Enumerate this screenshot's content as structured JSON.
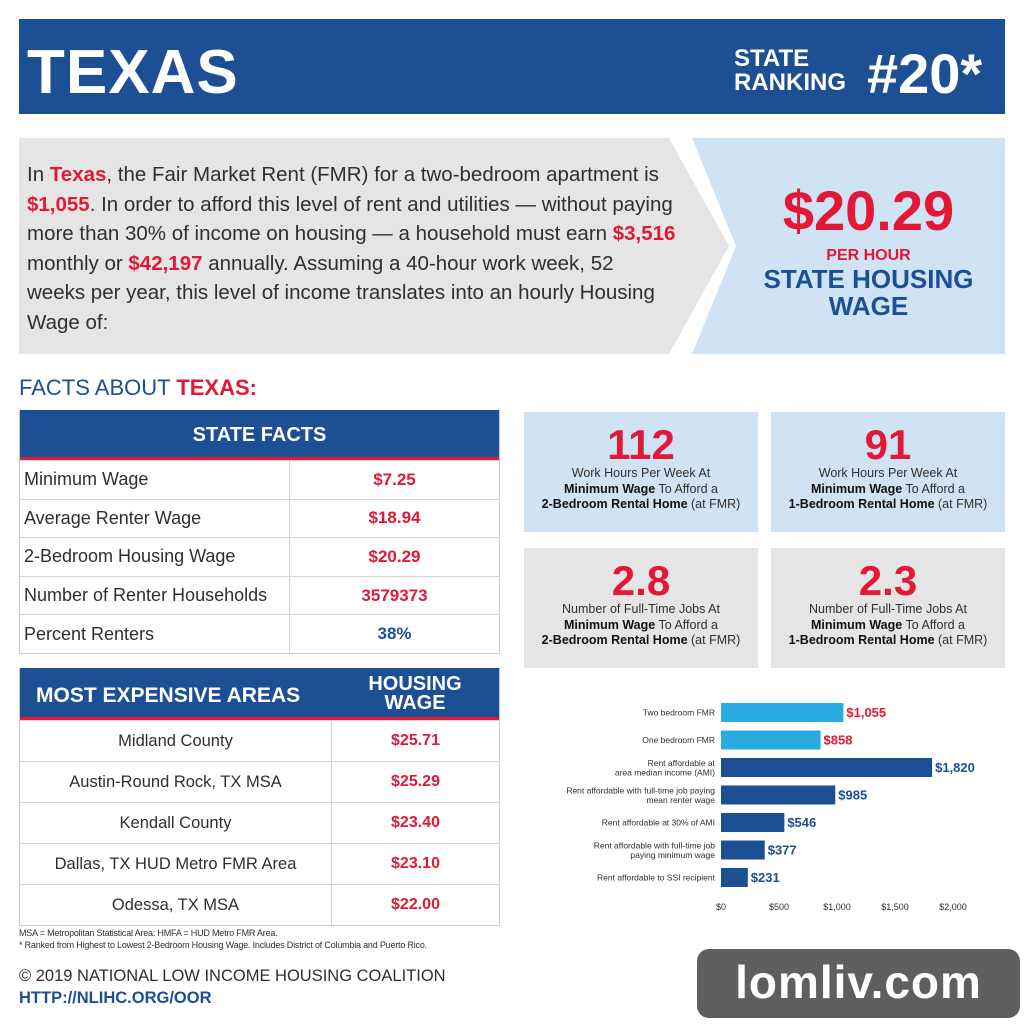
{
  "header": {
    "state": "TEXAS",
    "ranking_label_1": "STATE",
    "ranking_label_2": "RANKING",
    "ranking": "#20*"
  },
  "intro": {
    "p1": "In ",
    "state": "Texas",
    "p2": ", the Fair Market Rent (FMR) for a two-bedroom apartment is ",
    "fmr": "$1,055",
    "p3": ". In order to afford this level of rent and utilities — without paying more than 30% of income on housing — a household must earn ",
    "monthly": "$3,516",
    "p4": " monthly or ",
    "annual": "$42,197",
    "p5": " annually. Assuming a 40-hour work week, 52 weeks per year, this level of income translates into an hourly Housing Wage of:"
  },
  "wage_box": {
    "amount": "$20.29",
    "per_hour": "PER HOUR",
    "line1": "STATE HOUSING",
    "line2": "WAGE"
  },
  "facts_title": {
    "prefix": "FACTS ABOUT ",
    "state": "TEXAS:"
  },
  "state_facts": {
    "title": "STATE FACTS",
    "rows": [
      {
        "label": "Minimum Wage",
        "value": "$7.25"
      },
      {
        "label": "Average Renter Wage",
        "value": "$18.94"
      },
      {
        "label": "2-Bedroom Housing Wage",
        "value": "$20.29"
      },
      {
        "label": "Number of Renter Households",
        "value": "3579373"
      },
      {
        "label": "Percent Renters",
        "value": "38%"
      }
    ]
  },
  "expensive": {
    "title": "MOST EXPENSIVE AREAS",
    "col2_1": "HOUSING",
    "col2_2": "WAGE",
    "rows": [
      {
        "area": "Midland County",
        "wage": "$25.71"
      },
      {
        "area": "Austin-Round Rock, TX MSA",
        "wage": "$25.29"
      },
      {
        "area": "Kendall County",
        "wage": "$23.40"
      },
      {
        "area": "Dallas, TX HUD Metro FMR Area",
        "wage": "$23.10"
      },
      {
        "area": "Odessa, TX MSA",
        "wage": "$22.00"
      }
    ]
  },
  "footnotes": {
    "line1": "MSA = Metropolitan Statistical Area: HMFA = HUD Metro FMR Area.",
    "line2": "* Ranked from Highest to Lowest 2-Bedroom Housing Wage. Includes District of Columbia and Puerto Rico."
  },
  "footer": {
    "copyright": "© 2019 NATIONAL LOW INCOME HOUSING COALITION",
    "url": "HTTP://NLIHC.ORG/OOR"
  },
  "stats": [
    {
      "num": "112",
      "l1": "Work Hours Per Week At",
      "l2b": "Minimum Wage",
      "l2": " To Afford a",
      "l3b": "2-Bedroom Rental Home",
      "l3": " (at FMR)"
    },
    {
      "num": "91",
      "l1": "Work Hours Per Week At",
      "l2b": "Minimum Wage",
      "l2": " To Afford a",
      "l3b": "1-Bedroom Rental Home",
      "l3": " (at FMR)"
    },
    {
      "num": "2.8",
      "l1": "Number of Full-Time Jobs At",
      "l2b": "Minimum Wage",
      "l2": " To Afford a",
      "l3b": "2-Bedroom Rental Home",
      "l3": " (at FMR)"
    },
    {
      "num": "2.3",
      "l1": "Number of Full-Time Jobs At",
      "l2b": "Minimum Wage",
      "l2": " To Afford a",
      "l3b": "1-Bedroom Rental Home",
      "l3": " (at FMR)"
    }
  ],
  "chart_data": {
    "type": "bar",
    "orientation": "horizontal",
    "categories": [
      [
        "Two bedroom FMR"
      ],
      [
        "One bedroom FMR"
      ],
      [
        "Rent affordable at",
        "area median income (AMI)"
      ],
      [
        "Rent affordable with full-time job paying",
        "mean renter wage"
      ],
      [
        "Rent affordable at 30% of AMI"
      ],
      [
        "Rent affordable with full-time job",
        "paying minimum wage"
      ],
      [
        "Rent affordable to SSI recipient"
      ]
    ],
    "values": [
      1055,
      858,
      1820,
      985,
      546,
      377,
      231
    ],
    "value_labels": [
      "$1,055",
      "$858",
      "$1,820",
      "$985",
      "$546",
      "$377",
      "$231"
    ],
    "bar_colors": [
      "#29abe2",
      "#29abe2",
      "#1c4f93",
      "#1c4f93",
      "#1c4f93",
      "#1c4f93",
      "#1c4f93"
    ],
    "label_colors": [
      "#e31837",
      "#e31837",
      "#1c4f93",
      "#1c4f93",
      "#1c4f93",
      "#1c4f93",
      "#1c4f93"
    ],
    "xlim": [
      0,
      2000
    ],
    "xticks": [
      0,
      500,
      1000,
      1500,
      2000
    ],
    "xtick_labels": [
      "$0",
      "$500",
      "$1,000",
      "$1,500",
      "$2,000"
    ],
    "grid": false
  },
  "watermark": "lomliv.com",
  "colors": {
    "navy": "#1c4f93",
    "red": "#e31837",
    "light_blue": "#cfe3f5",
    "gray": "#e5e5e5",
    "cyan": "#29abe2"
  }
}
